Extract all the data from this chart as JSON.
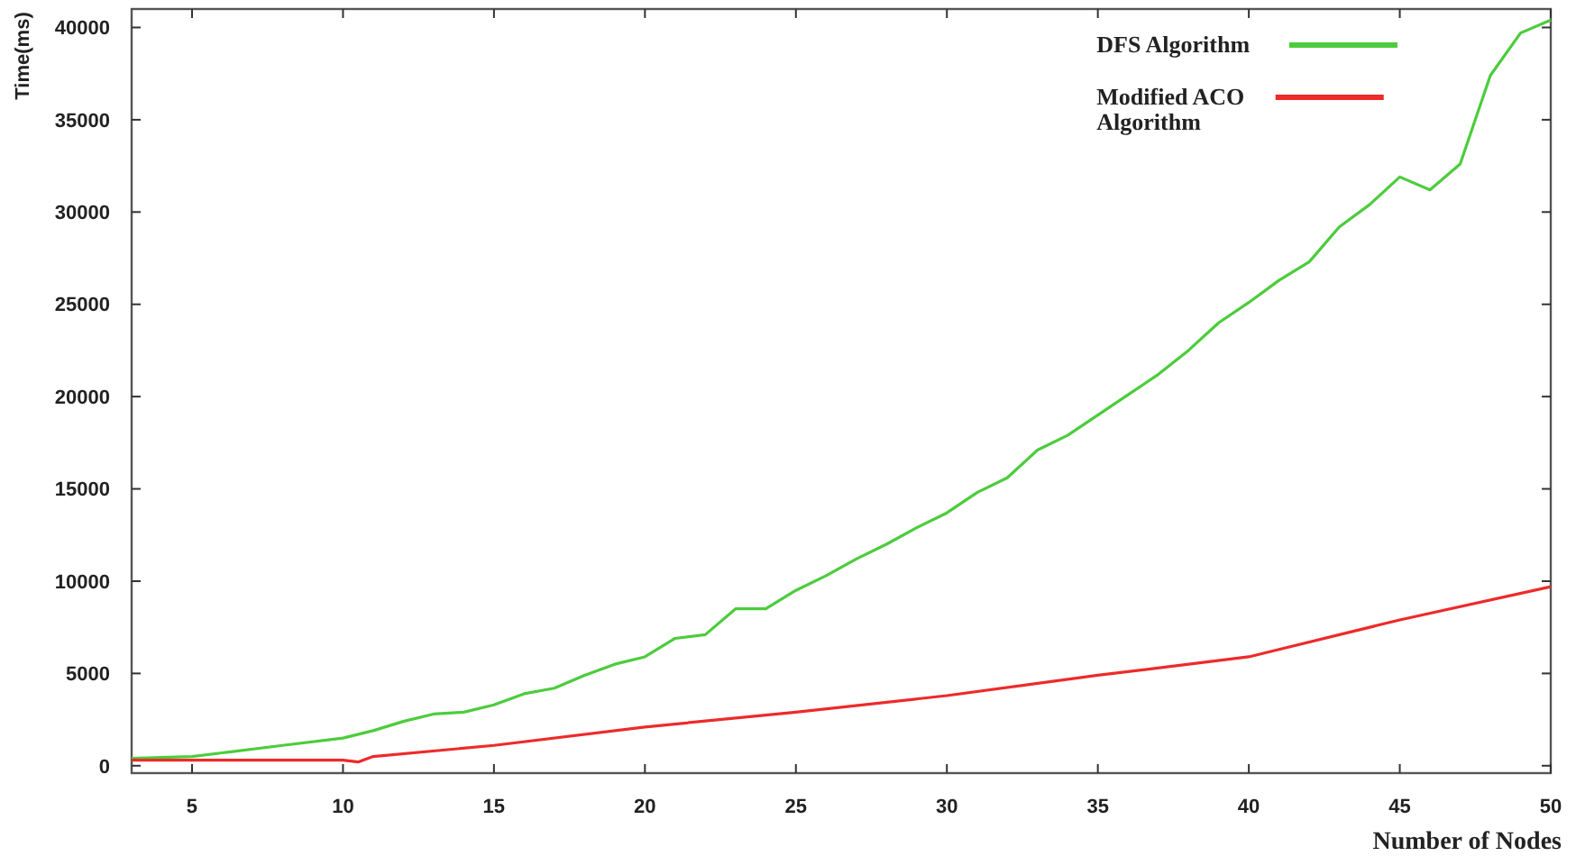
{
  "chart_data": {
    "type": "line",
    "xlabel": "Number of Nodes",
    "ylabel": "Time(ms)",
    "xlim": [
      3,
      50
    ],
    "ylim": [
      -400,
      41000
    ],
    "xticks": [
      5,
      10,
      15,
      20,
      25,
      30,
      35,
      40,
      45,
      50
    ],
    "yticks": [
      0,
      5000,
      10000,
      15000,
      20000,
      25000,
      30000,
      35000,
      40000
    ],
    "grid": false,
    "legend": "top right",
    "marker": "none",
    "line_style": "solid",
    "series": [
      {
        "name": "DFS Algorithm",
        "color": "#4ccc3c",
        "x": [
          3,
          5,
          6,
          8,
          10,
          11,
          12,
          13,
          14,
          15,
          16,
          17,
          18,
          19,
          20,
          21,
          22,
          23,
          24,
          25,
          26,
          27,
          28,
          29,
          30,
          31,
          32,
          33,
          34,
          35,
          36,
          37,
          38,
          39,
          40,
          41,
          42,
          43,
          44,
          45,
          46,
          47,
          48,
          49,
          50
        ],
        "values": [
          400,
          500,
          700,
          1100,
          1500,
          1900,
          2400,
          2800,
          2900,
          3300,
          3900,
          4200,
          4900,
          5500,
          5900,
          6900,
          7100,
          8500,
          8500,
          9500,
          10300,
          11200,
          12000,
          12900,
          13700,
          14800,
          15600,
          17100,
          17900,
          19000,
          20100,
          21200,
          22500,
          24000,
          25100,
          26300,
          27300,
          29200,
          30400,
          31900,
          31200,
          32600,
          37400,
          39700,
          40400
        ]
      },
      {
        "name": "Modified ACO Algorithm",
        "color": "#ee2a2a",
        "x": [
          3,
          10,
          10.5,
          11,
          15,
          20,
          25,
          30,
          35,
          40,
          41,
          45,
          50
        ],
        "values": [
          300,
          300,
          200,
          500,
          1100,
          2100,
          2900,
          3800,
          4900,
          5900,
          6300,
          7900,
          9700
        ]
      }
    ]
  }
}
